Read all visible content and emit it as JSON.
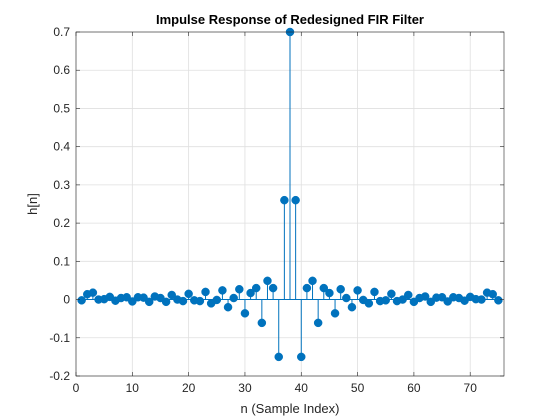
{
  "chart_data": {
    "type": "stem",
    "title": "Impulse Response of Redesigned FIR Filter",
    "xlabel": "n (Sample Index)",
    "ylabel": "h[n]",
    "xlim": [
      0,
      76
    ],
    "ylim": [
      -0.2,
      0.7
    ],
    "xticks": [
      0,
      10,
      20,
      30,
      40,
      50,
      60,
      70
    ],
    "yticks": [
      -0.2,
      -0.1,
      0,
      0.1,
      0.2,
      0.3,
      0.4,
      0.5,
      0.6,
      0.7
    ],
    "xtick_labels": [
      "0",
      "10",
      "20",
      "30",
      "40",
      "50",
      "60",
      "70"
    ],
    "ytick_labels": [
      "-0.2",
      "-0.1",
      "0",
      "0.1",
      "0.2",
      "0.3",
      "0.4",
      "0.5",
      "0.6",
      "0.7"
    ],
    "grid": true,
    "series": [
      {
        "color": "#0072BD",
        "x": [
          1,
          2,
          3,
          4,
          5,
          6,
          7,
          8,
          9,
          10,
          11,
          12,
          13,
          14,
          15,
          16,
          17,
          18,
          19,
          20,
          21,
          22,
          23,
          24,
          25,
          26,
          27,
          28,
          29,
          30,
          31,
          32,
          33,
          34,
          35,
          36,
          37,
          38,
          39,
          40,
          41,
          42,
          43,
          44,
          45,
          46,
          47,
          48,
          49,
          50,
          51,
          52,
          53,
          54,
          55,
          56,
          57,
          58,
          59,
          60,
          61,
          62,
          63,
          64,
          65,
          66,
          67,
          68,
          69,
          70,
          71,
          72,
          73,
          74,
          75
        ],
        "y": [
          -0.002,
          0.014,
          0.018,
          0.0,
          0.001,
          0.007,
          -0.003,
          0.004,
          0.006,
          -0.005,
          0.006,
          0.005,
          -0.006,
          0.008,
          0.004,
          -0.006,
          0.012,
          0.0,
          -0.004,
          0.015,
          -0.002,
          -0.004,
          0.02,
          -0.01,
          -0.001,
          0.024,
          -0.02,
          0.004,
          0.027,
          -0.036,
          0.017,
          0.03,
          -0.061,
          0.049,
          0.03,
          -0.15,
          0.26,
          0.7,
          0.26,
          -0.15,
          0.03,
          0.049,
          -0.061,
          0.03,
          0.017,
          -0.036,
          0.027,
          0.004,
          -0.02,
          0.024,
          -0.001,
          -0.01,
          0.02,
          -0.004,
          -0.002,
          0.015,
          -0.004,
          0.0,
          0.012,
          -0.006,
          0.004,
          0.008,
          -0.006,
          0.005,
          0.006,
          -0.005,
          0.006,
          0.004,
          -0.003,
          0.007,
          0.001,
          0.0,
          0.018,
          0.014,
          -0.002
        ]
      }
    ]
  }
}
